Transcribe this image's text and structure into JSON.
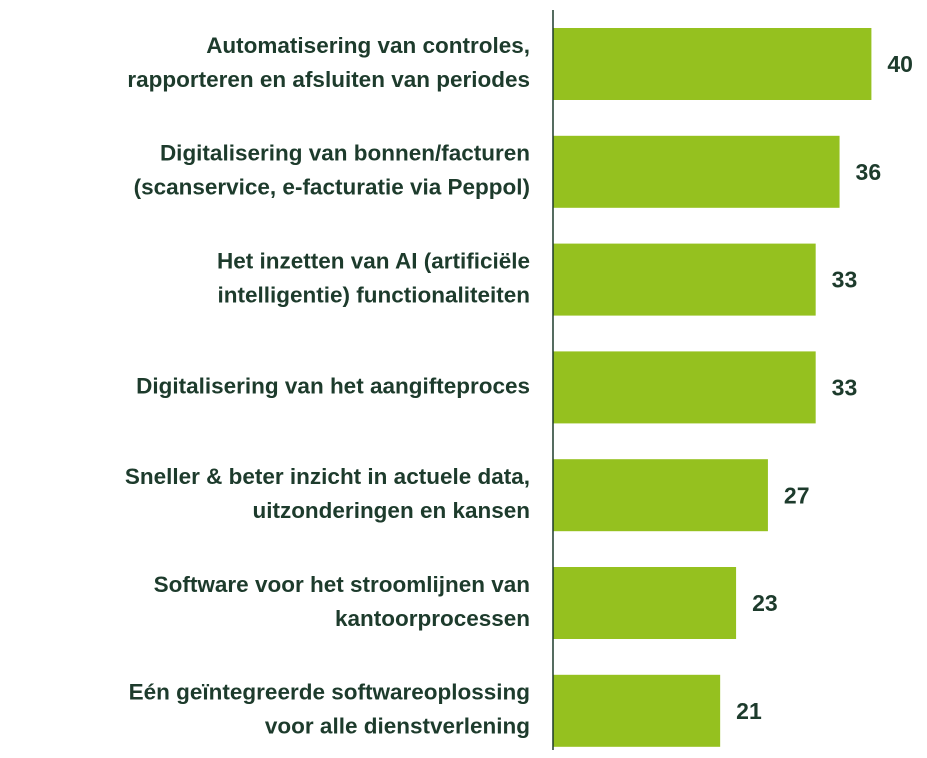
{
  "chart_data": {
    "type": "bar",
    "orientation": "horizontal",
    "categories": [
      [
        "Automatisering van controles,",
        "rapporteren en afsluiten van periodes"
      ],
      [
        "Digitalisering van bonnen/facturen",
        "(scanservice, e-facturatie via Peppol)"
      ],
      [
        "Het inzetten van AI (artificiële",
        "intelligentie) functionaliteiten"
      ],
      [
        "Digitalisering van het aangifteproces"
      ],
      [
        "Sneller & beter inzicht in actuele data,",
        "uitzonderingen en kansen"
      ],
      [
        "Software voor het stroomlijnen van",
        "kantoorprocessen"
      ],
      [
        "Eén geïntegreerde softwareoplossing",
        "voor alle dienstverlening"
      ]
    ],
    "values": [
      40,
      36,
      33,
      33,
      27,
      23,
      21
    ],
    "color": "#95c11f",
    "label_color": "#1d3b2c"
  }
}
